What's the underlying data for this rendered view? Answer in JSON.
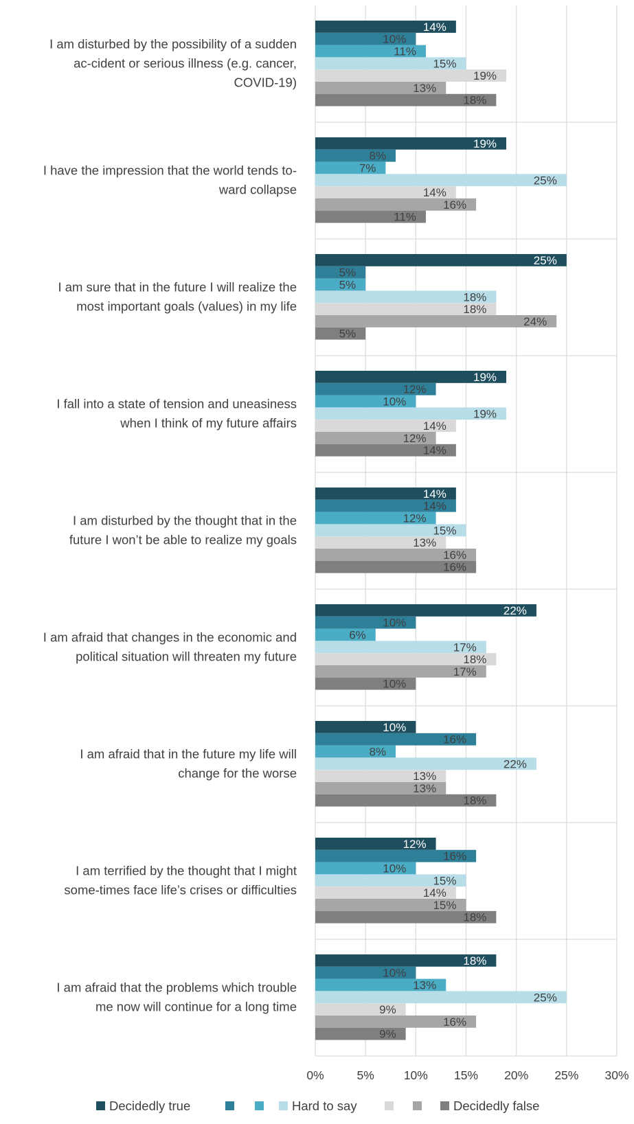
{
  "chart_data": {
    "type": "bar",
    "orientation": "horizontal",
    "categories": [
      "I am disturbed by the possibility of a sudden ac-cident or serious illness (e.g. cancer, COVID-19)",
      "I have the impression that the world tends to-ward collapse",
      "I am sure that in the future I will realize the most important goals (values) in my life",
      "I fall into a state of tension and uneasiness when I think of my future affairs",
      "I am disturbed by the thought that in the future I won’t be able to realize my goals",
      "I am afraid that changes in the economic and political situation will threaten my future",
      "I am afraid that in the future my life will change for the worse",
      "I am terrified by the thought that I might some-times face life’s crises or difficulties",
      "I am afraid that the problems which trouble me now will continue for a long time"
    ],
    "category_lines": [
      [
        "I am disturbed by the possibility of a sudden",
        "ac-cident or serious illness (e.g. cancer,",
        "COVID-19)"
      ],
      [
        "I have the impression that the world tends to-",
        "ward collapse"
      ],
      [
        "I am sure that in the future I will realize the",
        "most important goals (values) in my life"
      ],
      [
        "I fall into a state of tension and uneasiness",
        "when I think of my future affairs"
      ],
      [
        "I am disturbed by the thought that in the",
        "future I won’t be able to realize my goals"
      ],
      [
        "I am afraid that changes in the economic and",
        "political situation will threaten my future"
      ],
      [
        "I am afraid that in the future my life will",
        "change for the worse"
      ],
      [
        "I am terrified by the thought that I might",
        "some-times face life’s crises or difficulties"
      ],
      [
        "I am afraid that the problems which trouble",
        "me now will continue for a long time"
      ]
    ],
    "series": [
      {
        "name": "Decidedly true",
        "color": "#1f4e5f",
        "label_color": "#ffffff",
        "values": [
          14,
          19,
          25,
          19,
          14,
          22,
          10,
          12,
          18
        ],
        "value_labels": [
          "14%",
          "19%",
          "25%",
          "19%",
          "14%",
          "22%",
          "10%",
          "12%",
          "18%"
        ]
      },
      {
        "name": "",
        "color": "#2e7f98",
        "label_color": "#404040",
        "values": [
          10,
          8,
          5,
          12,
          14,
          10,
          16,
          16,
          10
        ],
        "value_labels": [
          "10%",
          "8%",
          "5%",
          "12%",
          "14%",
          "10%",
          "16%",
          "16%",
          "10%"
        ]
      },
      {
        "name": "",
        "color": "#4bacc6",
        "label_color": "#404040",
        "values": [
          11,
          7,
          5,
          10,
          12,
          6,
          8,
          10,
          13
        ],
        "value_labels": [
          "11%",
          "7%",
          "5%",
          "10%",
          "12%",
          "6%",
          "8%",
          "10%",
          "13%"
        ]
      },
      {
        "name": "Hard to say",
        "color": "#b7dde8",
        "label_color": "#404040",
        "values": [
          15,
          25,
          18,
          19,
          15,
          17,
          22,
          15,
          25
        ],
        "value_labels": [
          "15%",
          "25%",
          "18%",
          "19%",
          "15%",
          "17%",
          "22%",
          "15%",
          "25%"
        ]
      },
      {
        "name": "",
        "color": "#d9d9d9",
        "label_color": "#404040",
        "values": [
          19,
          14,
          18,
          14,
          13,
          18,
          13,
          14,
          9
        ],
        "value_labels": [
          "19%",
          "14%",
          "18%",
          "14%",
          "13%",
          "18%",
          "13%",
          "14%",
          "9%"
        ]
      },
      {
        "name": "",
        "color": "#a6a6a6",
        "label_color": "#404040",
        "values": [
          13,
          16,
          24,
          12,
          16,
          17,
          13,
          15,
          16
        ],
        "value_labels": [
          "13%",
          "16%",
          "24%",
          "12%",
          "16%",
          "17%",
          "13%",
          "15%",
          "16%"
        ]
      },
      {
        "name": "Decidedly false",
        "color": "#7f7f7f",
        "label_color": "#404040",
        "values": [
          18,
          11,
          5,
          14,
          16,
          10,
          18,
          18,
          9
        ],
        "value_labels": [
          "18%",
          "11%",
          "5%",
          "14%",
          "16%",
          "10%",
          "18%",
          "18%",
          "9%"
        ]
      }
    ],
    "xlim": [
      0,
      30
    ],
    "x_ticks": [
      0,
      5,
      10,
      15,
      20,
      25,
      30
    ],
    "x_tick_labels": [
      "0%",
      "5%",
      "10%",
      "15%",
      "20%",
      "25%",
      "30%"
    ],
    "grid": "vertical",
    "legend_position": "bottom",
    "title": "",
    "xlabel": "",
    "ylabel": ""
  }
}
